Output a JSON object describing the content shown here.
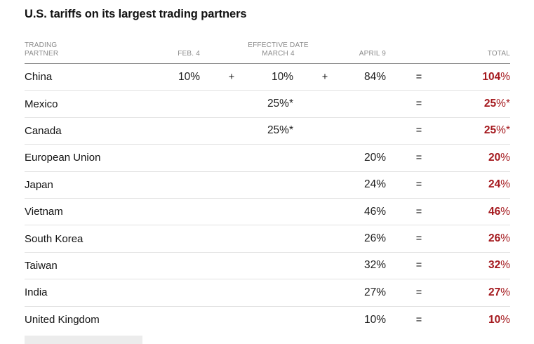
{
  "title": "U.S. tariffs on its largest trading partners",
  "table": {
    "headers": {
      "trading_partner_line1": "TRADING",
      "trading_partner_line2": "PARTNER",
      "feb4": "FEB. 4",
      "effective_date": "EFFECTIVE DATE",
      "march4": "MARCH 4",
      "april9": "APRIL 9",
      "total": "TOTAL"
    },
    "rows": [
      {
        "partner": "China",
        "feb4": "10%",
        "op1": "+",
        "march4": "10%",
        "op2": "+",
        "april9": "84%",
        "eq": "=",
        "total": "104%"
      },
      {
        "partner": "Mexico",
        "feb4": "",
        "op1": "",
        "march4": "25%*",
        "op2": "",
        "april9": "",
        "eq": "=",
        "total": "25%*"
      },
      {
        "partner": "Canada",
        "feb4": "",
        "op1": "",
        "march4": "25%*",
        "op2": "",
        "april9": "",
        "eq": "=",
        "total": "25%*"
      },
      {
        "partner": "European Union",
        "feb4": "",
        "op1": "",
        "march4": "",
        "op2": "",
        "april9": "20%",
        "eq": "=",
        "total": "20%"
      },
      {
        "partner": "Japan",
        "feb4": "",
        "op1": "",
        "march4": "",
        "op2": "",
        "april9": "24%",
        "eq": "=",
        "total": "24%"
      },
      {
        "partner": "Vietnam",
        "feb4": "",
        "op1": "",
        "march4": "",
        "op2": "",
        "april9": "46%",
        "eq": "=",
        "total": "46%"
      },
      {
        "partner": "South Korea",
        "feb4": "",
        "op1": "",
        "march4": "",
        "op2": "",
        "april9": "26%",
        "eq": "=",
        "total": "26%"
      },
      {
        "partner": "Taiwan",
        "feb4": "",
        "op1": "",
        "march4": "",
        "op2": "",
        "april9": "32%",
        "eq": "=",
        "total": "32%"
      },
      {
        "partner": "India",
        "feb4": "",
        "op1": "",
        "march4": "",
        "op2": "",
        "april9": "27%",
        "eq": "=",
        "total": "27%"
      },
      {
        "partner": "United Kingdom",
        "feb4": "",
        "op1": "",
        "march4": "",
        "op2": "",
        "april9": "10%",
        "eq": "=",
        "total": "10%"
      }
    ]
  },
  "colors": {
    "total_red": "#a4181d",
    "header_gray": "#8a8a8a",
    "text_dark": "#121212",
    "divider_dark": "#8f8f8f",
    "divider_light": "#e2e2e2",
    "placeholder_gray": "#ececec"
  },
  "chart_data": {
    "type": "table",
    "title": "U.S. tariffs on its largest trading partners",
    "columns": [
      "Trading partner",
      "Feb. 4",
      "Effective date March 4",
      "April 9",
      "Total"
    ],
    "rows": [
      [
        "China",
        "10%",
        "10%",
        "84%",
        "104%"
      ],
      [
        "Mexico",
        "",
        "25%*",
        "",
        "25%*"
      ],
      [
        "Canada",
        "",
        "25%*",
        "",
        "25%*"
      ],
      [
        "European Union",
        "",
        "",
        "20%",
        "20%"
      ],
      [
        "Japan",
        "",
        "",
        "24%",
        "24%"
      ],
      [
        "Vietnam",
        "",
        "",
        "46%",
        "46%"
      ],
      [
        "South Korea",
        "",
        "",
        "26%",
        "26%"
      ],
      [
        "Taiwan",
        "",
        "",
        "32%",
        "32%"
      ],
      [
        "India",
        "",
        "",
        "27%",
        "27%"
      ],
      [
        "United Kingdom",
        "",
        "",
        "10%",
        "10%"
      ]
    ],
    "total_percent_values": [
      104,
      25,
      25,
      20,
      24,
      46,
      26,
      32,
      27,
      10
    ],
    "footnote_marker": "*"
  }
}
